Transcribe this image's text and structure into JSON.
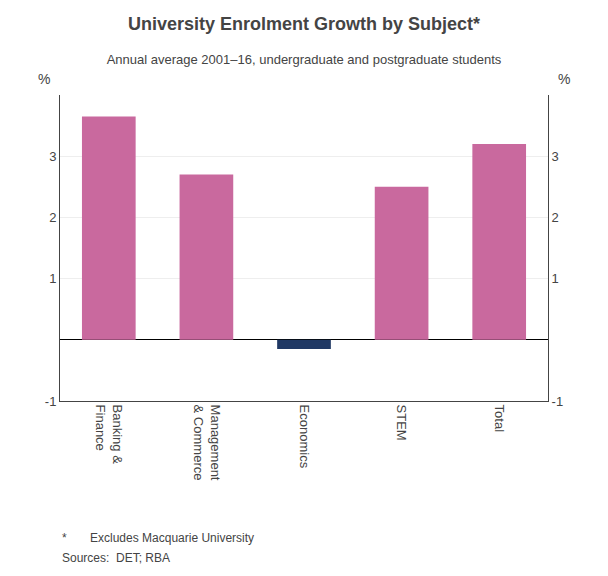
{
  "chart_data": {
    "type": "bar",
    "title": "University Enrolment Growth by Subject*",
    "subtitle": "Annual average 2001–16, undergraduate and postgraduate students",
    "categories": [
      "Banking &\nFinance",
      "Management\n& Commerce",
      "Economics",
      "STEM",
      "Total"
    ],
    "values": [
      3.65,
      2.7,
      -0.15,
      2.5,
      3.2
    ],
    "colors": [
      "#c9699e",
      "#c9699e",
      "#1f3864",
      "#c9699e",
      "#c9699e"
    ],
    "ylabel": "%",
    "y2label": "%",
    "ylim": [
      -1,
      4
    ],
    "yticks": [
      -1,
      {
        "value": 0,
        "label": ""
      },
      1,
      2,
      3
    ],
    "y2lim": [
      -1,
      4
    ],
    "y2ticks": [
      -1,
      {
        "value": 0,
        "label": ""
      },
      1,
      2,
      3
    ],
    "footnotes": [
      "*       Excludes Macquarie University",
      "Sources:  DET; RBA"
    ],
    "grid": true
  }
}
